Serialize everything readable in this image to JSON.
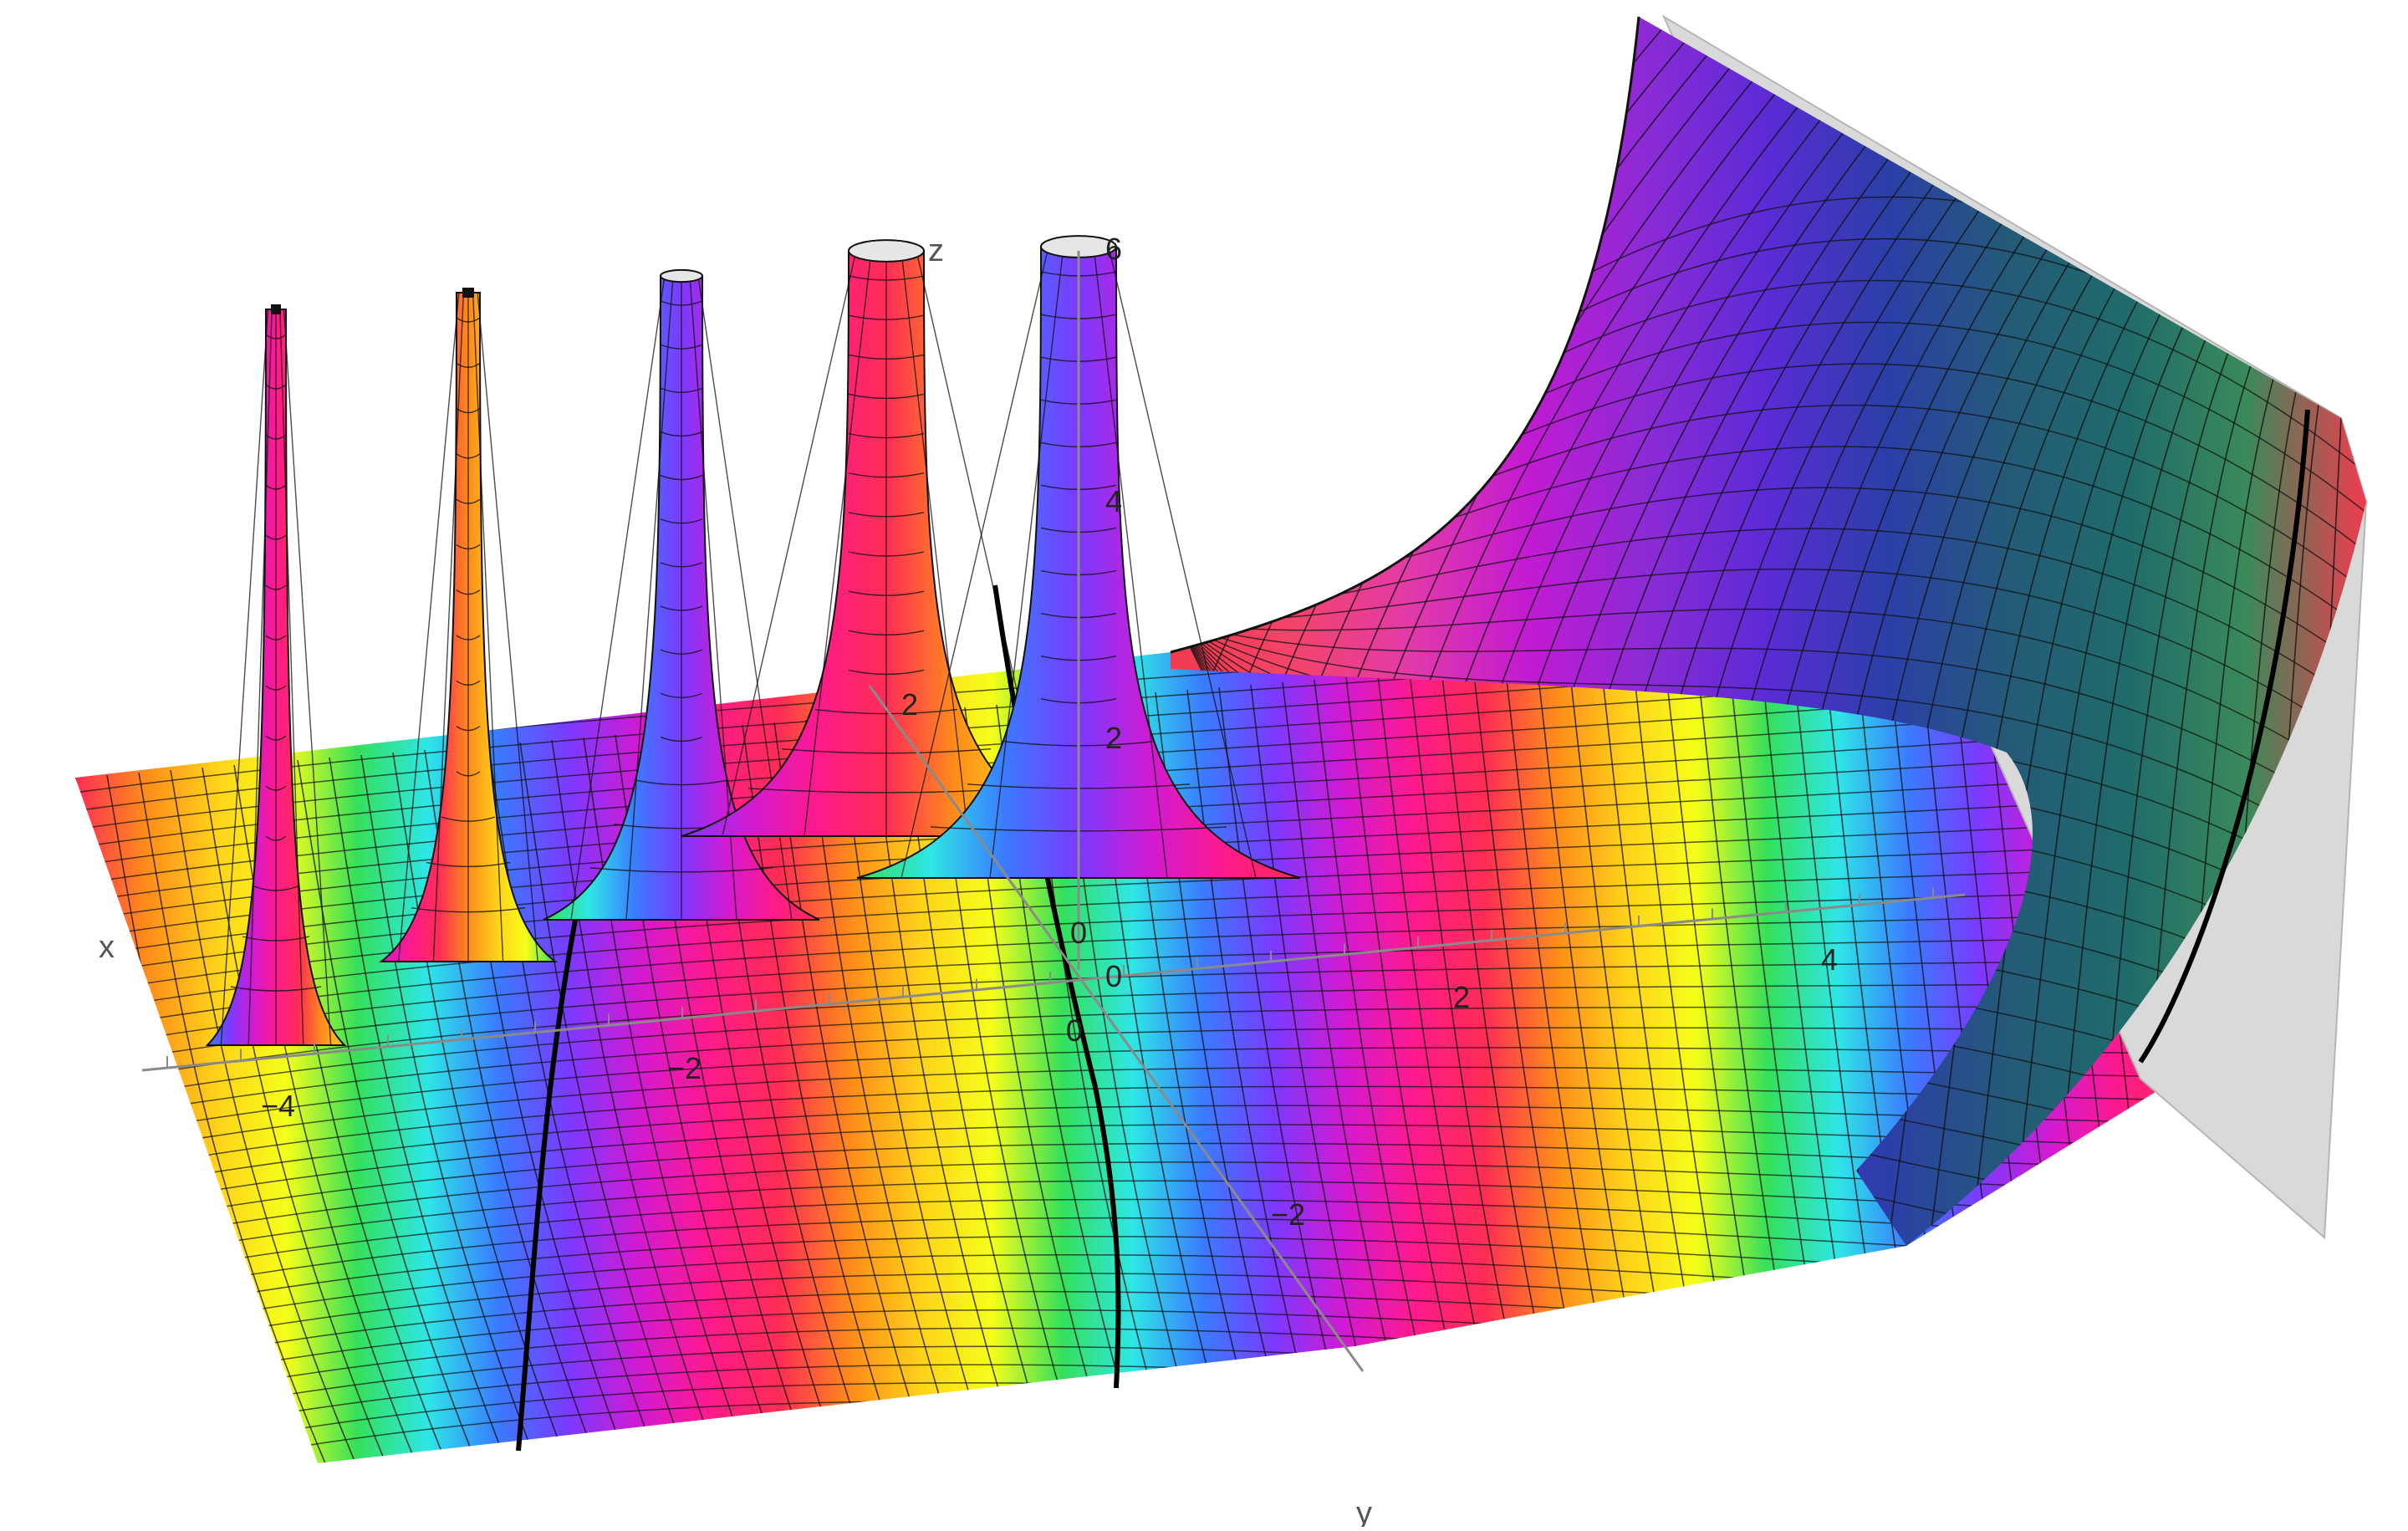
{
  "axes": {
    "x_label": "x",
    "y_label": "y",
    "z_label": "z",
    "x_ticks": [
      "−4",
      "−2",
      "0",
      "2",
      "4"
    ],
    "y_ticks": [
      "−2",
      "0",
      "2"
    ],
    "z_ticks": [
      "0",
      "2",
      "4",
      "6"
    ]
  },
  "surface": {
    "colors": [
      "#ff2d55",
      "#ff8c1a",
      "#ffd21a",
      "#f5ff1a",
      "#34e05a",
      "#2ee6e6",
      "#3a7bff",
      "#7b3aff",
      "#d21ad2",
      "#ff1a8c"
    ],
    "right_colors": [
      "#f23a4e",
      "#f4446a",
      "#e23aa8",
      "#c21ad2",
      "#8a2bd6",
      "#5b2bd6",
      "#2b3fa8",
      "#245a78",
      "#1f6b6b",
      "#3a8a5a"
    ],
    "wall_side": "#d9d9d9",
    "mesh_color": "#111111"
  },
  "spikes": [
    {
      "axis_x": -4.3,
      "height": "tall-thin",
      "palette_offset": 6
    },
    {
      "axis_x": -3.2,
      "height": "tall-thin",
      "palette_offset": 8
    },
    {
      "axis_x": -2.2,
      "height": "cut-at-6",
      "palette_offset": 4
    },
    {
      "axis_x": -1.1,
      "height": "cut-at-6",
      "palette_offset": 7
    },
    {
      "axis_x": 0.0,
      "height": "cut-at-6",
      "palette_offset": 4
    }
  ]
}
